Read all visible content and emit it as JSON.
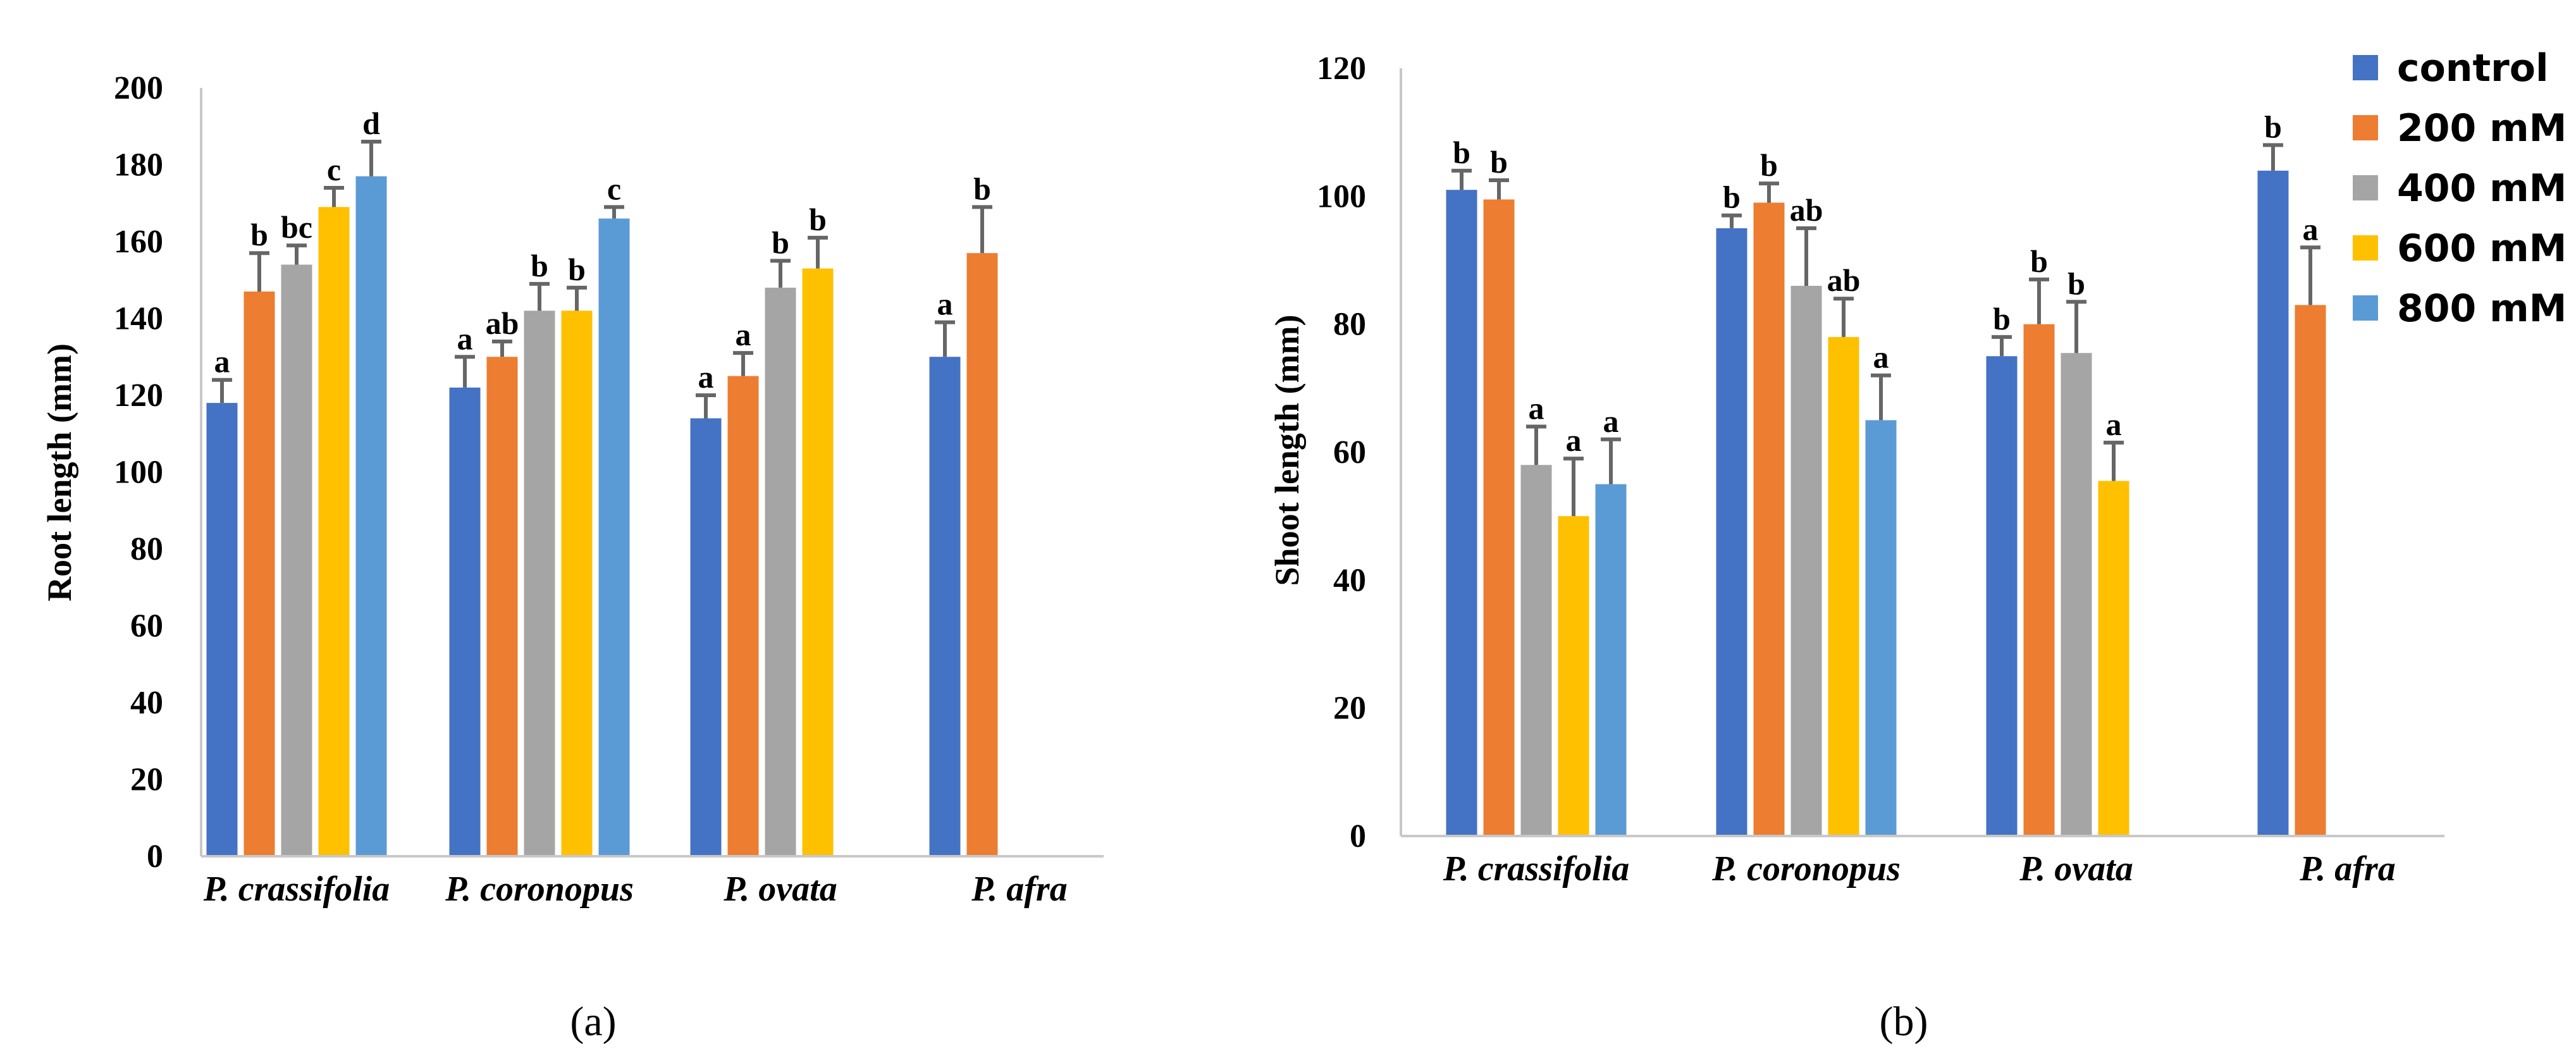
{
  "series_colors": {
    "control": "#4472c4",
    "200 mM": "#ed7d31",
    "400 mM": "#a5a5a5",
    "600 mM": "#ffc000",
    "800 mM": "#5b9bd5"
  },
  "legend": {
    "labels": [
      "control",
      "200 mM",
      "400 mM",
      "600 mM",
      "800 mM"
    ],
    "placement": "right of panel (b), top"
  },
  "chart_data": [
    {
      "type": "bar",
      "panel_label": "(a)",
      "ylabel": "Root length (mm)",
      "xlabel": "",
      "ylim": [
        0,
        200
      ],
      "ytick_step": 20,
      "ytick_labels": [
        "0",
        "20",
        "40",
        "60",
        "80",
        "100",
        "120",
        "140",
        "160",
        "180",
        "200"
      ],
      "categories": [
        "P. crassifolia",
        "P. coronopus",
        "P. ovata",
        "P. afra"
      ],
      "series": [
        {
          "name": "control",
          "values": [
            118,
            122,
            114,
            130
          ],
          "errors": [
            6,
            8,
            6,
            9
          ],
          "letters": [
            "a",
            "a",
            "a",
            "a"
          ]
        },
        {
          "name": "200 mM",
          "values": [
            147,
            130,
            125,
            157
          ],
          "errors": [
            10,
            4,
            6,
            12
          ],
          "letters": [
            "b",
            "ab",
            "a",
            "b"
          ]
        },
        {
          "name": "400 mM",
          "values": [
            154,
            142,
            148,
            null
          ],
          "errors": [
            5,
            7,
            7,
            null
          ],
          "letters": [
            "bc",
            "b",
            "b",
            null
          ]
        },
        {
          "name": "600 mM",
          "values": [
            169,
            142,
            153,
            null
          ],
          "errors": [
            5,
            6,
            8,
            null
          ],
          "letters": [
            "c",
            "b",
            "b",
            null
          ]
        },
        {
          "name": "800 mM",
          "values": [
            177,
            166,
            null,
            null
          ],
          "errors": [
            9,
            3,
            null,
            null
          ],
          "letters": [
            "d",
            "c",
            null,
            null
          ]
        }
      ]
    },
    {
      "type": "bar",
      "panel_label": "(b)",
      "ylabel": "Shoot length (mm)",
      "xlabel": "",
      "ylim": [
        0,
        120
      ],
      "ytick_step": 20,
      "ytick_labels": [
        "0",
        "20",
        "40",
        "60",
        "80",
        "100",
        "120"
      ],
      "categories": [
        "P. crassifolia",
        "P. coronopus",
        "P. ovata",
        "P. afra"
      ],
      "series": [
        {
          "name": "control",
          "values": [
            101,
            95,
            75,
            104
          ],
          "errors": [
            3,
            2,
            3,
            4
          ],
          "letters": [
            "b",
            "b",
            "b",
            "b"
          ]
        },
        {
          "name": "200 mM",
          "values": [
            99.5,
            99,
            80,
            83
          ],
          "errors": [
            3,
            3,
            7,
            9
          ],
          "letters": [
            "b",
            "b",
            "b",
            "a"
          ]
        },
        {
          "name": "400 mM",
          "values": [
            58,
            86,
            75.5,
            null
          ],
          "errors": [
            6,
            9,
            8,
            null
          ],
          "letters": [
            "a",
            "ab",
            "b",
            null
          ]
        },
        {
          "name": "600 mM",
          "values": [
            50,
            78,
            55.5,
            null
          ],
          "errors": [
            9,
            6,
            6,
            null
          ],
          "letters": [
            "a",
            "ab",
            "a",
            null
          ]
        },
        {
          "name": "800 mM",
          "values": [
            55,
            65,
            null,
            null
          ],
          "errors": [
            7,
            7,
            null,
            null
          ],
          "letters": [
            "a",
            "a",
            null,
            null
          ]
        }
      ]
    }
  ]
}
